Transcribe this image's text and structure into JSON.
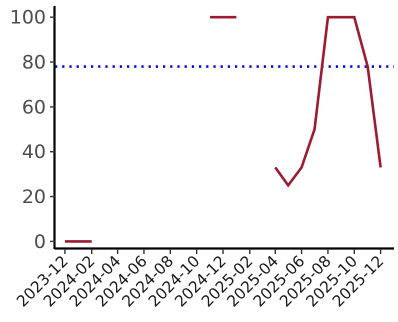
{
  "chart_data": {
    "type": "line",
    "title": "",
    "xlabel": "",
    "ylabel": "",
    "x_axis": "date",
    "xlim": [
      "2023-11-08",
      "2026-01-01"
    ],
    "ylim": [
      -2.5,
      105
    ],
    "x_ticks": [
      "2023-12",
      "2024-02",
      "2024-04",
      "2024-06",
      "2024-08",
      "2024-10",
      "2024-12",
      "2025-02",
      "2025-04",
      "2025-06",
      "2025-08",
      "2025-10",
      "2025-12"
    ],
    "y_ticks": [
      0,
      20,
      40,
      60,
      80,
      100
    ],
    "grid": false,
    "legend": "none",
    "series": [
      {
        "color": "#9b1c31",
        "points": [
          [
            "2023-12",
            0
          ],
          [
            "2024-01",
            0
          ],
          [
            "2024-02",
            0
          ],
          [
            "2024-03",
            null
          ],
          [
            "2024-04",
            null
          ],
          [
            "2024-05",
            null
          ],
          [
            "2024-06",
            null
          ],
          [
            "2024-07",
            null
          ],
          [
            "2024-08",
            null
          ],
          [
            "2024-09",
            null
          ],
          [
            "2024-10",
            null
          ],
          [
            "2024-11",
            100
          ],
          [
            "2024-12",
            100
          ],
          [
            "2025-01",
            100
          ],
          [
            "2025-02",
            null
          ],
          [
            "2025-03",
            null
          ],
          [
            "2025-04",
            33
          ],
          [
            "2025-05",
            25
          ],
          [
            "2025-06",
            33
          ],
          [
            "2025-07",
            50
          ],
          [
            "2025-08",
            100
          ],
          [
            "2025-09",
            100
          ],
          [
            "2025-10",
            100
          ],
          [
            "2025-11",
            78
          ],
          [
            "2025-12",
            33
          ]
        ]
      }
    ],
    "reference_line": {
      "y": 78,
      "color": "#0000ee",
      "style": "dotted"
    }
  }
}
